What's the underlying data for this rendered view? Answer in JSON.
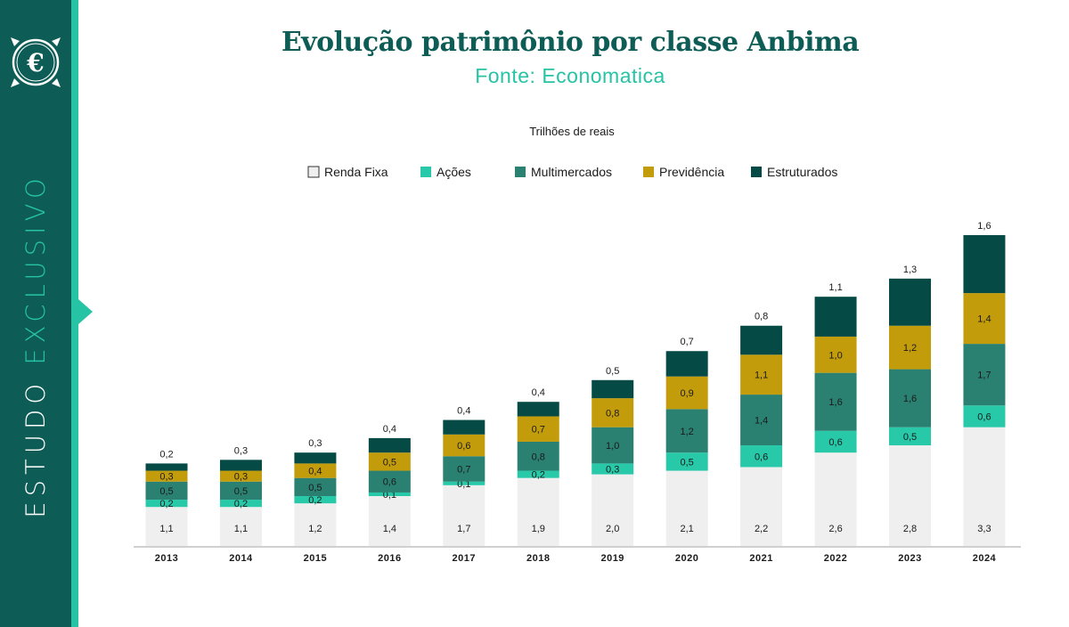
{
  "header": {
    "title": "Evolução patrimônio por classe Anbima",
    "subtitle": "Fonte: Economatica"
  },
  "sidebar": {
    "label_part1": "ESTUDO",
    "label_part2": "EXCLUSIVO",
    "logo_glyph": "€",
    "logo_icon": "euro-seal-icon",
    "arrow_icon": "triangle-right-icon"
  },
  "colors": {
    "sidebar_bg": "#0d5c55",
    "accent": "#27c3a5",
    "title": "#0d5c55",
    "renda_fixa": "#efefef",
    "acoes": "#27c9a9",
    "multimercados": "#2a8071",
    "previdencia": "#c39c0c",
    "estruturados": "#064a45"
  },
  "chart_data": {
    "type": "bar",
    "stacked": true,
    "unit_label": "Trilhões de reais",
    "categories": [
      "2013",
      "2014",
      "2015",
      "2016",
      "2017",
      "2018",
      "2019",
      "2020",
      "2021",
      "2022",
      "2023",
      "2024"
    ],
    "series": [
      {
        "name": "Renda Fixa",
        "color": "#efefef",
        "border": "#333333",
        "values": [
          1.1,
          1.1,
          1.2,
          1.4,
          1.7,
          1.9,
          2.0,
          2.1,
          2.2,
          2.6,
          2.8,
          3.3
        ],
        "labels": [
          "1,1",
          "1,1",
          "1,2",
          "1,4",
          "1,7",
          "1,9",
          "2,0",
          "2,1",
          "2,2",
          "2,6",
          "2,8",
          "3,3"
        ]
      },
      {
        "name": "Ações",
        "color": "#27c9a9",
        "values": [
          0.2,
          0.2,
          0.2,
          0.1,
          0.1,
          0.2,
          0.3,
          0.5,
          0.6,
          0.6,
          0.5,
          0.6
        ],
        "labels": [
          "0,2",
          "0,2",
          "0,2",
          "0,1",
          "0,1",
          "0,2",
          "0,3",
          "0,5",
          "0,6",
          "0,6",
          "0,5",
          "0,6"
        ]
      },
      {
        "name": "Multimercados",
        "color": "#2a8071",
        "values": [
          0.5,
          0.5,
          0.5,
          0.6,
          0.7,
          0.8,
          1.0,
          1.2,
          1.4,
          1.6,
          1.6,
          1.7
        ],
        "labels": [
          "0,5",
          "0,5",
          "0,5",
          "0,6",
          "0,7",
          "0,8",
          "1,0",
          "1,2",
          "1,4",
          "1,6",
          "1,6",
          "1,7"
        ]
      },
      {
        "name": "Previdência",
        "color": "#c39c0c",
        "values": [
          0.3,
          0.3,
          0.4,
          0.5,
          0.6,
          0.7,
          0.8,
          0.9,
          1.1,
          1.0,
          1.2,
          1.4
        ],
        "labels": [
          "0,3",
          "0,3",
          "0,4",
          "0,5",
          "0,6",
          "0,7",
          "0,8",
          "0,9",
          "1,1",
          "1,0",
          "1,2",
          "1,4"
        ]
      },
      {
        "name": "Estruturados",
        "color": "#064a45",
        "values": [
          0.2,
          0.3,
          0.3,
          0.4,
          0.4,
          0.4,
          0.5,
          0.7,
          0.8,
          1.1,
          1.3,
          1.6
        ],
        "labels": [
          "0,2",
          "0,3",
          "0,3",
          "0,4",
          "0,4",
          "0,4",
          "0,5",
          "0,7",
          "0,8",
          "1,1",
          "1,3",
          "1,6"
        ]
      }
    ],
    "legend_position": "top",
    "grid": false
  }
}
